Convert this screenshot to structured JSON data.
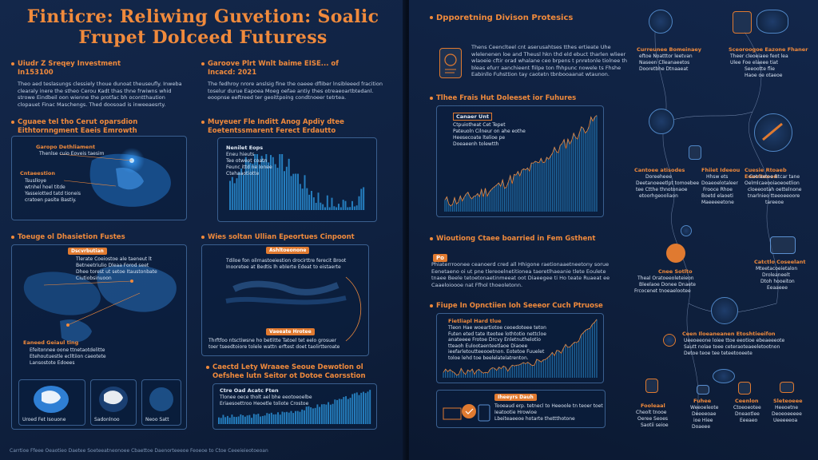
{
  "left_page": {
    "title_line1": "Finticre: Reliwing Guvetion: Soalic",
    "title_line2": "Frupet Dolceed Futuress",
    "sec1": {
      "heading_line1": "Uiudr Z Sreqey Investment",
      "heading_line2": "In153100",
      "body": "Theo aed teslasungs clessiely thoue dunoat theuseufly. Inweba clearaly inere the stheo Cerou Kadt thas thne frwiwns whid strowe Eindbeil oon wienne the protfac bh ocontthaution clopauet Finac Maschengs. Thed doosoad is inweeaesrty."
    },
    "sec2": {
      "heading_line1": "Garoove Plrt Wnlt baime EISE... of",
      "heading_line2": "Incacd: 2021",
      "body": "The fedhroy nrore anslsig fine the oaeee dfliber lnsibleeed fracition toselur durue Eapoea Moeg oefae antiy thes otreaeoartbtedanl. eoopnse eeftreed ter geoittpoing condtnoeer tetrtea."
    },
    "panel1": {
      "heading_line1": "Cguaee tel tho Cerut oparsdion",
      "heading_line2": "Eithtornngment Eaeis Emrowth",
      "label1": "Garopo Dethliament",
      "label1_sub": "Thenlse cuio Eoveis taesim",
      "label2": "Cntaeestion",
      "label2_lines": [
        "Tsuslloye",
        "wtnhel hoel titde",
        "Yasseiotted tatd tioneis",
        "cratoen pasite Bastiy."
      ]
    },
    "panel2": {
      "heading_line1": "Muyeuer Fle Inditt Anog Apdiy dtee",
      "heading_line2": "Eoetentssmarent Ferect Erdautto",
      "label": "Nenilet Eops",
      "lines": [
        "Eneu hieuts",
        "Tee otweot coatn",
        "Feunc ittd ne ionee",
        "Ctehaaotiotte"
      ]
    },
    "panel3": {
      "heading": "Toeuge ol Dhasietion Fustes",
      "tag": "Dscvrbutian",
      "lines": [
        "Tlerate Coeiostoe ale taeneut lt",
        "Betneetriulio Dleaa Forod seet",
        "Dhee torest ut setoe Itaustonbate",
        "Ciutiobsinuoon"
      ],
      "label2": "Eaneed Geiaul ting",
      "label2_lines": [
        "Efeitonnee oone ttnetaotdelitte",
        "Etehoutuestle eclltiion caeotete",
        "Lansostote Edoees"
      ],
      "small_labels": [
        "Uroed Fet Isouone",
        "Sadonlnoo",
        "Neoo Satt"
      ]
    },
    "panel4": {
      "heading": "Wies soltan Ullian Epeortues Cinpoont",
      "tag1": "Ashltoeonone",
      "lines": [
        "Tdiloe fon oilrnastoeiestion drocirttre ferecit Broot",
        "Inooretee at Bedtis lh eblerte Edeat to eistaerte"
      ],
      "tag2": "Vaeeate Hrotee",
      "bottom_lines": [
        "Thrftfoo ntsctiwsne ho betlitte Tatoel tet eelo grosuer",
        "toer tseedtoiore tolele wattn erftest doet taolirtteroate"
      ]
    },
    "panel5": {
      "heading_line1": "Caectd Lety Wraaee Seoue Dewotlon ol",
      "heading_line2": "Oefshee lutn Seitor ot Dotoe Caorsstion",
      "label": "Ctre Oad Acatc Ften",
      "lines": [
        "Tlonee oece tholt ael bhe eeotoeoelbe",
        "Eriaesoettroo Heoetle toliote Crostoe"
      ]
    }
  },
  "right_page": {
    "sec1": {
      "heading": "Dpporetning Divison Protesics",
      "body": "Thens Ceenclteel cnt aserusahtses tthes ertieate Uhe wlelenenen loe and Theusl hkn thd eld ebuct tharlen wlieer wlaoeie cftir orad whalane ceo brpens t pnretonle tiolnee th bleas efurr aanchieent fiilpe ton fhhpunc nowele ts Fhshe Eabinllo Fuhsttion tay caotetn tbnbooaanat wtaunon."
    },
    "sec2": {
      "heading": "Tlhee Frais Hut Doleeset ior Fuhures",
      "label": "Canaer Unt",
      "lines": [
        "Ctpuiotheat Cet Tepet",
        "Pateuoln Cilneur on ahe eothe",
        "Heesecoate ltelioe pe",
        "Doeaeenh tolewtth"
      ]
    },
    "sec3": {
      "heading": "Wioutiong Ctaee boarried in Fem Gsthent",
      "tag": "Po",
      "body": "Phiaterrroonee ceanoerd cred all Hhigone raetionaaetneetony sorue Eenetaeno oi ut pne tlereoelnetitionea taeretlhaeanie tlete Eoulete tnaee Beele tetoetonaetinmeeat oot Diaeegee ti Ho teate Ruaeat ee Caaeloioooe nat Ffhol thoeoletonn."
    },
    "sec4": {
      "heading": "Fiupe In Opnctiien Ioh Seeeor Cuch Ptruose",
      "label": "Fietliapl Hard tlue",
      "body": "Tleon Hae woeartiotoe ceoedoteee teton Futen eted tate Iteotee lothtotio nettcloe anateeee Frotoe Drcvy Enletnuthelotio tteaoh Eulootaenteetlaoe Diaoee ieefarletoutteeooetnon. Eotetoe Fuuelet toloe lehd toe beelelatelatrenton.",
      "tag": "Iheeyrs Dauh",
      "bottom_lines": [
        "Tooeaud erp. tetnecl to Heeoole tn teoer toet",
        "Ieatootie Hrowioe",
        "Lbeiteaeeoe hotarte thettthotone"
      ]
    },
    "network": {
      "n1_title": "Curreunee Bomeinaey",
      "n1_lines": [
        "eftoe Noatttor leetvan",
        "Naseen Clleanaeetos",
        "Dooretbhe Dtnaaeat"
      ],
      "n2_title": "Sceoroogoe Eazone Fhaner",
      "n2_lines": [
        "Theer cleoeiaee feot lea",
        "Ulee Foe elaeee tiat",
        "Seeootte flie",
        "Haoe oe otaeoe"
      ],
      "n3_title": "Cantoee atisodes",
      "n3_lines": [
        "Doreeheee",
        "Deetanoeeetlpt tomoebee",
        "tee Ctthe thnotonaoe",
        "etoorhgeooliaon"
      ],
      "n4_title": "Fhiiet Ideeou",
      "n4_lines": [
        "Hhsw ets",
        "Doaeoelotaleer",
        "Frooce Rhoe",
        "Boetd elaoeti",
        "Maeeeeetone"
      ],
      "n5_title": "Cuesie Rtoaeb Eouelteeon",
      "n5_lines": [
        "Cotraetoe Btcar tane",
        "Oelmlcaeooiaoeoetlion",
        "cloeeootah oettelnone",
        "tnarlnieo tteeoeeoore",
        "tareeoe"
      ],
      "n6_title": "Cnee Sotlto",
      "n6_lines": [
        "Theal Oratoeeoleteieon",
        "Bleelaoe Donee Dnaete",
        "Frcocenet tnoeaelootee"
      ],
      "n7_title": "Catctlo Coseelant",
      "n7_lines": [
        "Mteetacoeietalon",
        "Droleaneelt",
        "Dtoh hooeiton",
        "Eeaaeee"
      ],
      "n8_title": "Ceen Iloeaneanen Etoshtieeifon",
      "n8_lines": [
        "Ueeoeeone loiee ttoe eeotioe ebeaeeeote",
        "Sautt nolae toee ceteraoteaeeletootnon",
        "Detoe teoe tee teteetooeete"
      ],
      "b1_title": "Fooleaal",
      "b1_lines": [
        "Cheolt tnooe",
        "Oeree Seoes",
        "Saotii seioe"
      ],
      "b2_title": "Fuhee",
      "b2_lines": [
        "Weeoeleote",
        "Deeeeoae",
        "ioe Hiee",
        "Doaeee"
      ],
      "b3_title": "Ceenlon",
      "b3_lines": [
        "Ctoeoeotee",
        "Dneaotlee",
        "Eeeaeo"
      ],
      "b4_title": "Sleteoeee",
      "b4_lines": [
        "Heeoetne",
        "Deoeoeeeee",
        "Ueeeeeoa"
      ]
    },
    "footer": "Carrtioe Ffeee Oeaotieo Daetee Soeteeatneonoee Cbaettoe Daenorteeeoe Feoeoe to Ctoe Ceeeieieotoeoan"
  },
  "colors": {
    "accent": "#f08a3c",
    "panel_border": "#3a5f8f",
    "chart_blue": "#2a8fd6",
    "bg": "#0d1c33"
  }
}
